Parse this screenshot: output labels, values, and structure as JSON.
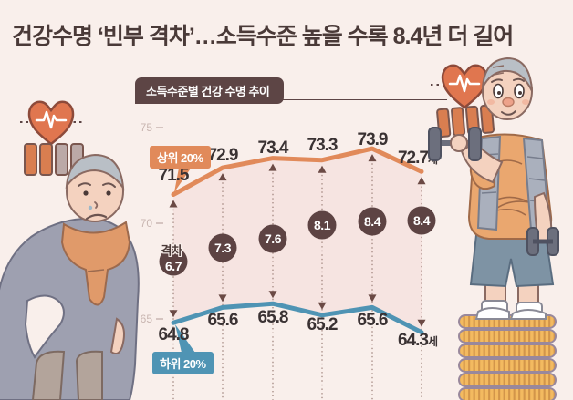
{
  "title": "건강수명 ‘빈부 격차’…소득수준 높을 수록 8.4년 더 길어",
  "chart_header": "소득수준별 건강 수명 추이",
  "chart_data": {
    "type": "line",
    "title": "소득수준별 건강 수명 추이",
    "unit": "세",
    "x": [
      1,
      2,
      3,
      4,
      5,
      6
    ],
    "x_tick_labels_visible": false,
    "series": [
      {
        "name": "상위 20%",
        "color": "#e18a5a",
        "values": [
          71.5,
          72.9,
          73.4,
          73.3,
          73.9,
          72.7
        ]
      },
      {
        "name": "하위 20%",
        "color": "#4f94b4",
        "values": [
          64.8,
          65.6,
          65.8,
          65.2,
          65.6,
          64.3
        ]
      }
    ],
    "gap": {
      "label": "격차",
      "color": "#5d4343",
      "values": [
        6.7,
        7.3,
        7.6,
        8.1,
        8.4,
        8.4
      ]
    },
    "y_ticks": [
      75,
      70,
      65
    ],
    "ylim": [
      62.5,
      76
    ],
    "grid": "dotted vertical guides with up/down arrows between series",
    "legend_position": "badges on first data points"
  },
  "colors": {
    "background": "#f9efeb",
    "band_fill": "#f6e4e1",
    "title_text": "#4a3a38",
    "header_badge": "#5d4545",
    "value_text": "#3a3233",
    "dotted_line": "#9b7f77",
    "arrow": "#6b4a45",
    "tick_text": "#c9b6b1",
    "top_series": "#e18a5a",
    "bottom_series": "#4f94b4",
    "gap_circle": "#5d4343",
    "coin": "#f3ba60",
    "heart": "#e0764f"
  },
  "icons": {
    "poor_side": [
      "heart-ecg-icon",
      "battery-half-icon"
    ],
    "rich_side": [
      "heart-ecg-icon",
      "battery-full-icon",
      "dumbbell-icon",
      "coin-stack-icon"
    ]
  }
}
